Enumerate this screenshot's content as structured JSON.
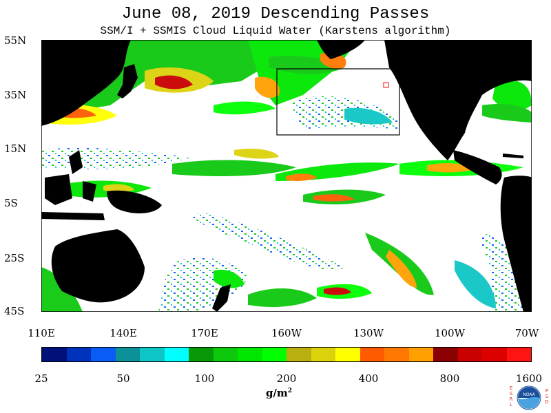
{
  "header": {
    "title": "June 08, 2019  Descending Passes",
    "subtitle": "SSM/I + SSMIS Cloud Liquid Water (Karstens algorithm)"
  },
  "map": {
    "latitude_labels": [
      "55N",
      "35N",
      "15N",
      "5S",
      "25S",
      "45S"
    ],
    "longitude_labels": [
      "110E",
      "140E",
      "170E",
      "160W",
      "130W",
      "100W",
      "70W"
    ],
    "land_color": "#000000",
    "no_data_color": "#ffffff"
  },
  "colorbar": {
    "colors": [
      "#00127a",
      "#0033bb",
      "#0a5cf6",
      "#0b9197",
      "#0fc6c6",
      "#00ffff",
      "#079908",
      "#0ec80e",
      "#00e600",
      "#00ff00",
      "#b9af10",
      "#dcd20b",
      "#ffff00",
      "#ff5a00",
      "#ff7800",
      "#ffa000",
      "#8b0000",
      "#c80000",
      "#dd0000",
      "#ff1414"
    ],
    "tick_labels": [
      "25",
      "50",
      "100",
      "200",
      "400",
      "800",
      "1600"
    ],
    "units": "g/m",
    "units_exponent": "2"
  },
  "logo": {
    "left_letters": [
      "E",
      "S",
      "R",
      "L"
    ],
    "right_letters": [
      "P",
      "S",
      "D"
    ],
    "center_text": "NOAA"
  }
}
